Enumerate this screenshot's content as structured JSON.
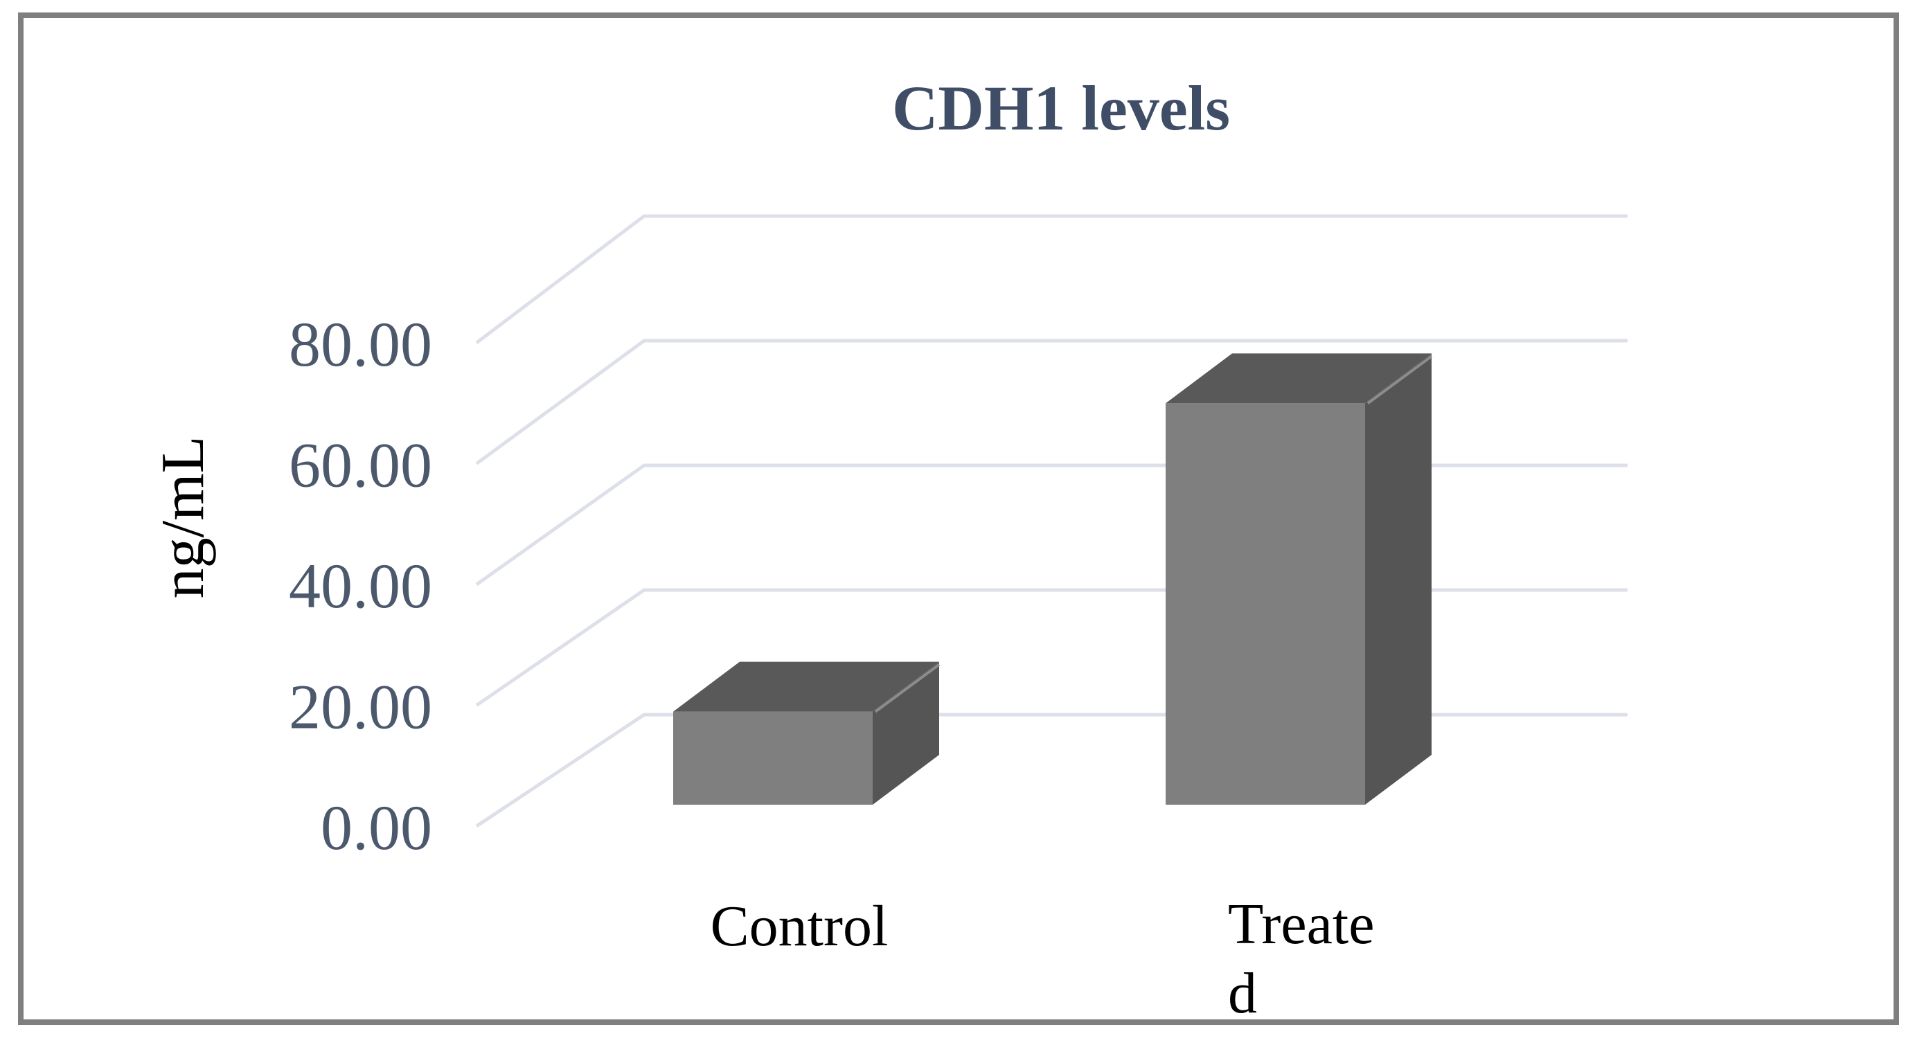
{
  "chart_data": {
    "type": "bar",
    "subtype": "3d-column",
    "title": "CDH1 levels",
    "xlabel": "",
    "ylabel": "ng/mL",
    "categories": [
      "Control",
      "Treated"
    ],
    "category_label_lines": [
      [
        "Control"
      ],
      [
        "Treate",
        "d"
      ]
    ],
    "series": [
      {
        "name": "CDH1",
        "values": [
          16,
          69
        ]
      }
    ],
    "ylim": [
      0,
      80
    ],
    "ytick_values": [
      0,
      20,
      40,
      60,
      80
    ],
    "ytick_labels": [
      "0.00",
      "20.00",
      "40.00",
      "60.00",
      "80.00"
    ],
    "grid": true,
    "legend": false,
    "colors": {
      "bar_front": "#7F7F7F",
      "bar_top": "#595959",
      "bar_side": "#555555",
      "bar_edge_highlight": "#8C8C8C",
      "gridline": "#DDE0E9",
      "title_text": "#3F4E66",
      "tick_text": "#4C596D",
      "category_text": "#000000",
      "axis_title_text": "#000000",
      "frame_border": "#7F7F7F",
      "background": "#FFFFFF"
    }
  }
}
